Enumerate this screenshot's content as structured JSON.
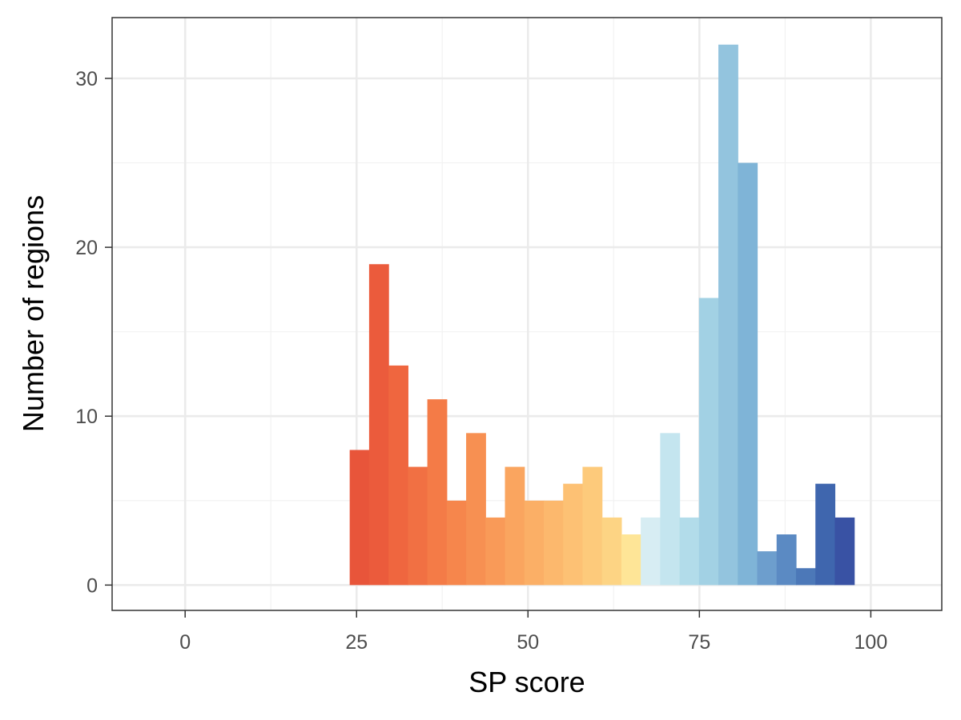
{
  "chart_data": {
    "type": "bar",
    "subtype": "histogram",
    "title": "",
    "xlabel": "SP score",
    "ylabel": "Number of regions",
    "xlim": [
      -10.65,
      110.35
    ],
    "ylim": [
      -1.5,
      33.6
    ],
    "x_ticks": [
      "0",
      "25",
      "50",
      "75",
      "100"
    ],
    "y_ticks": [
      "0",
      "10",
      "20",
      "30"
    ],
    "grid": true,
    "legend": "none",
    "bin_width": 2.83,
    "bins": [
      {
        "x0": 24.0,
        "x1": 26.83,
        "count": 8,
        "color": "#e8553a"
      },
      {
        "x0": 26.83,
        "x1": 29.66,
        "count": 19,
        "color": "#eb5b3c"
      },
      {
        "x0": 29.66,
        "x1": 32.49,
        "count": 13,
        "color": "#ef663f"
      },
      {
        "x0": 32.49,
        "x1": 35.32,
        "count": 7,
        "color": "#f17043"
      },
      {
        "x0": 35.32,
        "x1": 38.15,
        "count": 11,
        "color": "#f47b47"
      },
      {
        "x0": 38.15,
        "x1": 40.98,
        "count": 5,
        "color": "#f6864c"
      },
      {
        "x0": 40.98,
        "x1": 43.81,
        "count": 9,
        "color": "#f79052"
      },
      {
        "x0": 43.81,
        "x1": 46.64,
        "count": 4,
        "color": "#f99a58"
      },
      {
        "x0": 46.64,
        "x1": 49.47,
        "count": 7,
        "color": "#faa55f"
      },
      {
        "x0": 49.47,
        "x1": 52.3,
        "count": 5,
        "color": "#fbaf66"
      },
      {
        "x0": 52.3,
        "x1": 55.13,
        "count": 5,
        "color": "#fcb86d"
      },
      {
        "x0": 55.13,
        "x1": 57.96,
        "count": 6,
        "color": "#fdc174"
      },
      {
        "x0": 57.96,
        "x1": 60.79,
        "count": 7,
        "color": "#fdca7b"
      },
      {
        "x0": 60.79,
        "x1": 63.62,
        "count": 4,
        "color": "#fdd484"
      },
      {
        "x0": 63.62,
        "x1": 66.45,
        "count": 3,
        "color": "#fee597"
      },
      {
        "x0": 66.45,
        "x1": 69.28,
        "count": 4,
        "color": "#d7edf3"
      },
      {
        "x0": 69.28,
        "x1": 72.11,
        "count": 9,
        "color": "#c4e5ef"
      },
      {
        "x0": 72.11,
        "x1": 74.94,
        "count": 4,
        "color": "#b2dcea"
      },
      {
        "x0": 74.94,
        "x1": 77.77,
        "count": 17,
        "color": "#a2d1e4"
      },
      {
        "x0": 77.77,
        "x1": 80.6,
        "count": 32,
        "color": "#93c4de"
      },
      {
        "x0": 80.6,
        "x1": 83.43,
        "count": 25,
        "color": "#7fb4d7"
      },
      {
        "x0": 83.43,
        "x1": 86.26,
        "count": 2,
        "color": "#6d9ecd"
      },
      {
        "x0": 86.26,
        "x1": 89.09,
        "count": 3,
        "color": "#5b8ac3"
      },
      {
        "x0": 89.09,
        "x1": 91.92,
        "count": 1,
        "color": "#4c78b8"
      },
      {
        "x0": 91.92,
        "x1": 94.75,
        "count": 6,
        "color": "#3f66ae"
      },
      {
        "x0": 94.75,
        "x1": 97.58,
        "count": 4,
        "color": "#3952a4"
      }
    ]
  }
}
